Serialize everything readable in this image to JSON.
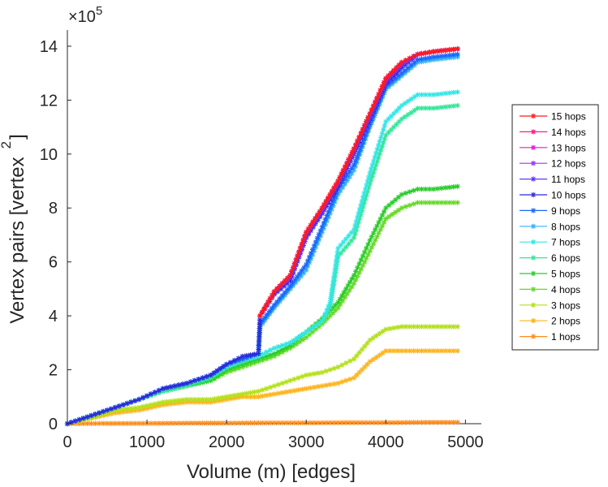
{
  "chart_data": {
    "type": "line",
    "title": "",
    "xlabel": "Volume (m) [edges]",
    "ylabel": "Vertex pairs [vertex",
    "ylabel_exponent": "2",
    "ylabel_tail": "]",
    "y_multiplier_base": "×10",
    "y_multiplier_exponent": "5",
    "xlim": [
      0,
      5200
    ],
    "ylim": [
      0,
      14.6
    ],
    "xticks": [
      0,
      1000,
      2000,
      3000,
      4000,
      5000
    ],
    "xtick_labels": [
      "0",
      "1000",
      "2000",
      "3000",
      "4000",
      "5000"
    ],
    "yticks": [
      0,
      2,
      4,
      6,
      8,
      10,
      12,
      14
    ],
    "ytick_labels": [
      "0",
      "2",
      "4",
      "6",
      "8",
      "10",
      "12",
      "14"
    ],
    "y_units_note": "values in units of 10^5",
    "grid": false,
    "legend_position": "right",
    "marker": "asterisk",
    "series": [
      {
        "name": "15 hops",
        "color": "#ff1a1a",
        "x": [
          2420,
          2600,
          2800,
          3000,
          3200,
          3400,
          3600,
          3800,
          4000,
          4200,
          4400,
          4600,
          4900
        ],
        "values": [
          4.0,
          4.9,
          5.5,
          7.1,
          8.0,
          9.0,
          10.2,
          11.5,
          12.8,
          13.4,
          13.7,
          13.8,
          13.9
        ]
      },
      {
        "name": "14 hops",
        "color": "#ff1a8c",
        "x": [
          2420,
          2600,
          2800,
          3000,
          3200,
          3400,
          3600,
          3800,
          4000,
          4200,
          4400,
          4600,
          4900
        ],
        "values": [
          4.0,
          4.9,
          5.5,
          7.1,
          8.0,
          9.0,
          10.2,
          11.5,
          12.8,
          13.4,
          13.7,
          13.8,
          13.9
        ]
      },
      {
        "name": "13 hops",
        "color": "#e619d9",
        "x": [
          2420,
          2600,
          2800,
          3000,
          3200,
          3400,
          3600,
          3800,
          4000,
          4200,
          4400,
          4600,
          4900
        ],
        "values": [
          4.0,
          4.9,
          5.5,
          7.1,
          8.0,
          9.0,
          10.2,
          11.5,
          12.8,
          13.4,
          13.7,
          13.8,
          13.9
        ]
      },
      {
        "name": "12 hops",
        "color": "#9933ff",
        "x": [
          2420,
          2600,
          2800,
          3000,
          3200,
          3400,
          3600,
          3800,
          4000,
          4200,
          4400,
          4600,
          4900
        ],
        "values": [
          4.0,
          4.9,
          5.5,
          7.1,
          8.0,
          9.0,
          10.2,
          11.5,
          12.8,
          13.4,
          13.7,
          13.8,
          13.9
        ]
      },
      {
        "name": "11 hops",
        "color": "#6633ff",
        "x": [
          2420,
          2600,
          2800,
          3000,
          3200,
          3400,
          3600,
          3800,
          4000,
          4200,
          4400,
          4600,
          4900
        ],
        "values": [
          4.0,
          4.9,
          5.4,
          7.0,
          7.9,
          8.9,
          10.1,
          11.4,
          12.7,
          13.3,
          13.7,
          13.8,
          13.9
        ]
      },
      {
        "name": "10 hops",
        "color": "#2b2bd9",
        "x": [
          0,
          300,
          600,
          900,
          1200,
          1500,
          1800,
          2000,
          2200,
          2400,
          2420,
          2600,
          2800,
          3000,
          3200,
          3400,
          3600,
          3800,
          4000,
          4200,
          4400,
          4600,
          4900
        ],
        "values": [
          0,
          0.3,
          0.6,
          0.9,
          1.3,
          1.5,
          1.8,
          2.2,
          2.5,
          2.6,
          4.0,
          4.8,
          5.3,
          6.9,
          7.8,
          8.8,
          10.0,
          11.3,
          12.6,
          13.2,
          13.7,
          13.8,
          13.9
        ]
      },
      {
        "name": "9 hops",
        "color": "#1a66ff",
        "x": [
          0,
          300,
          600,
          900,
          1200,
          1500,
          1800,
          2000,
          2200,
          2400,
          2420,
          2600,
          2800,
          3000,
          3200,
          3400,
          3600,
          3800,
          4000,
          4200,
          4400,
          4600,
          4900
        ],
        "values": [
          0,
          0.3,
          0.6,
          0.9,
          1.3,
          1.5,
          1.8,
          2.2,
          2.4,
          2.6,
          3.7,
          4.4,
          5.1,
          5.9,
          7.3,
          8.7,
          9.6,
          11.1,
          12.5,
          13.0,
          13.5,
          13.6,
          13.7
        ]
      },
      {
        "name": "8 hops",
        "color": "#33b3ff",
        "x": [
          0,
          300,
          600,
          900,
          1200,
          1500,
          1800,
          2000,
          2200,
          2400,
          2420,
          2600,
          2800,
          3000,
          3200,
          3400,
          3600,
          3800,
          4000,
          4200,
          4400,
          4600,
          4900
        ],
        "values": [
          0,
          0.3,
          0.6,
          0.9,
          1.3,
          1.5,
          1.8,
          2.2,
          2.4,
          2.6,
          3.6,
          4.3,
          5.0,
          5.7,
          7.1,
          8.5,
          9.4,
          11.0,
          12.4,
          12.9,
          13.4,
          13.5,
          13.6
        ]
      },
      {
        "name": "7 hops",
        "color": "#33e6e6",
        "x": [
          0,
          300,
          600,
          900,
          1200,
          1500,
          1800,
          2000,
          2200,
          2400,
          2600,
          2800,
          3000,
          3200,
          3300,
          3400,
          3600,
          3800,
          4000,
          4200,
          4400,
          4600,
          4900
        ],
        "values": [
          0,
          0.3,
          0.6,
          0.9,
          1.3,
          1.5,
          1.8,
          2.1,
          2.4,
          2.5,
          2.8,
          3.0,
          3.4,
          3.8,
          4.5,
          6.5,
          7.2,
          9.3,
          11.2,
          11.8,
          12.2,
          12.2,
          12.3
        ]
      },
      {
        "name": "6 hops",
        "color": "#33e699",
        "x": [
          0,
          300,
          600,
          900,
          1200,
          1500,
          1800,
          2000,
          2200,
          2400,
          2600,
          2800,
          3000,
          3200,
          3300,
          3400,
          3600,
          3800,
          4000,
          4200,
          4400,
          4600,
          4900
        ],
        "values": [
          0,
          0.3,
          0.6,
          0.9,
          1.2,
          1.4,
          1.7,
          2.1,
          2.3,
          2.5,
          2.8,
          3.0,
          3.4,
          3.8,
          4.3,
          6.2,
          6.9,
          8.9,
          10.7,
          11.3,
          11.7,
          11.7,
          11.8
        ]
      },
      {
        "name": "5 hops",
        "color": "#29cc29",
        "x": [
          0,
          300,
          600,
          900,
          1200,
          1500,
          1800,
          2000,
          2200,
          2400,
          2600,
          2800,
          3000,
          3200,
          3400,
          3600,
          3800,
          4000,
          4200,
          4400,
          4600,
          4900
        ],
        "values": [
          0,
          0.3,
          0.6,
          0.9,
          1.2,
          1.4,
          1.6,
          2.0,
          2.2,
          2.4,
          2.6,
          2.9,
          3.4,
          3.9,
          4.5,
          5.5,
          6.8,
          8.0,
          8.5,
          8.7,
          8.7,
          8.8
        ]
      },
      {
        "name": "4 hops",
        "color": "#66d926",
        "x": [
          0,
          300,
          600,
          900,
          1200,
          1500,
          1800,
          2000,
          2200,
          2400,
          2600,
          2800,
          3000,
          3200,
          3400,
          3600,
          3800,
          4000,
          4200,
          4400,
          4600,
          4900
        ],
        "values": [
          0,
          0.3,
          0.6,
          0.9,
          1.2,
          1.4,
          1.6,
          1.9,
          2.1,
          2.3,
          2.5,
          2.8,
          3.2,
          3.7,
          4.3,
          5.2,
          6.4,
          7.6,
          8.0,
          8.2,
          8.2,
          8.2
        ]
      },
      {
        "name": "3 hops",
        "color": "#b3e01a",
        "x": [
          0,
          300,
          600,
          900,
          1200,
          1500,
          1800,
          2000,
          2200,
          2400,
          2600,
          2800,
          3000,
          3200,
          3400,
          3600,
          3800,
          4000,
          4200,
          4400,
          4600,
          4900
        ],
        "values": [
          0,
          0.2,
          0.5,
          0.6,
          0.8,
          0.9,
          0.9,
          1.0,
          1.1,
          1.2,
          1.4,
          1.6,
          1.8,
          1.9,
          2.1,
          2.4,
          3.1,
          3.5,
          3.6,
          3.6,
          3.6,
          3.6
        ]
      },
      {
        "name": "2 hops",
        "color": "#ffb31a",
        "x": [
          0,
          300,
          600,
          900,
          1200,
          1500,
          1800,
          2000,
          2200,
          2400,
          2600,
          2800,
          3000,
          3200,
          3400,
          3600,
          3800,
          4000,
          4200,
          4400,
          4600,
          4900
        ],
        "values": [
          0,
          0.2,
          0.4,
          0.5,
          0.7,
          0.8,
          0.8,
          0.9,
          1.0,
          1.0,
          1.1,
          1.2,
          1.3,
          1.4,
          1.5,
          1.7,
          2.3,
          2.7,
          2.7,
          2.7,
          2.7,
          2.7
        ]
      },
      {
        "name": "1 hops",
        "color": "#ff8c1a",
        "x": [
          0,
          500,
          1000,
          1500,
          2000,
          2500,
          3000,
          3500,
          4000,
          4500,
          4900
        ],
        "values": [
          0,
          0.01,
          0.01,
          0.02,
          0.02,
          0.03,
          0.03,
          0.04,
          0.04,
          0.05,
          0.05
        ]
      }
    ]
  }
}
